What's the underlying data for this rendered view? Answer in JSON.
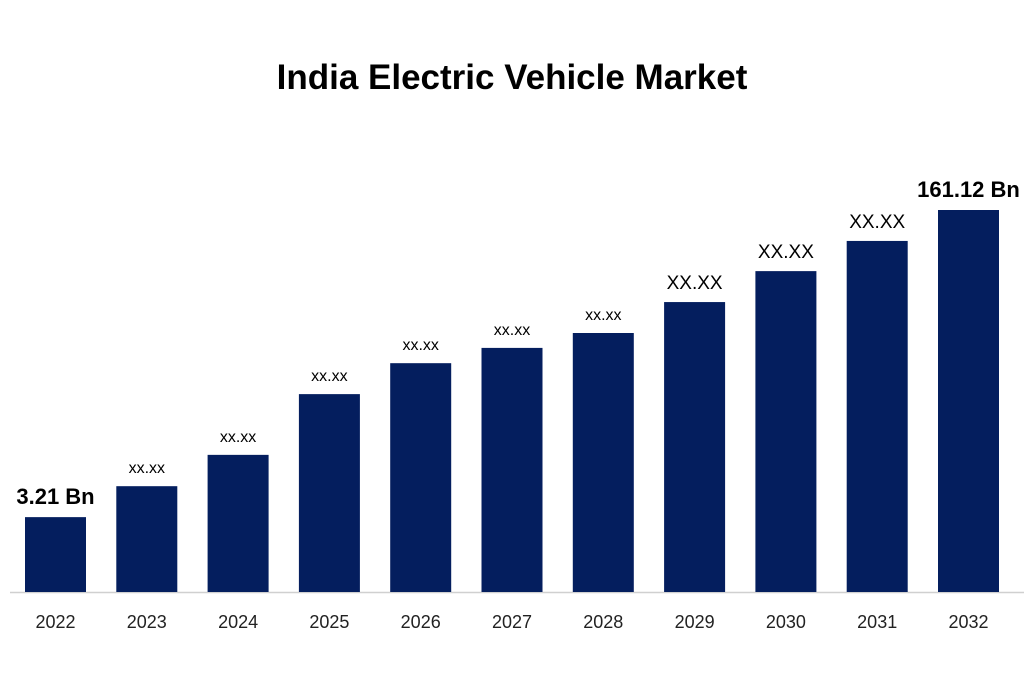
{
  "chart_data": {
    "type": "bar",
    "title": "India Electric Vehicle Market",
    "xlabel": "",
    "ylabel": "",
    "categories": [
      "2022",
      "2023",
      "2024",
      "2025",
      "2026",
      "2027",
      "2028",
      "2029",
      "2030",
      "2031",
      "2032"
    ],
    "data_labels": [
      "3.21 Bn",
      "xx.xx",
      "xx.xx",
      "xx.xx",
      "xx.xx",
      "xx.xx",
      "xx.xx",
      "XX.XX",
      "XX.XX",
      "XX.XX",
      "161.12 Bn"
    ],
    "values": [
      3.21,
      null,
      null,
      null,
      null,
      null,
      null,
      null,
      null,
      null,
      161.12
    ],
    "relative_bar_height_pct": [
      19.6,
      27.7,
      35.9,
      51.8,
      59.9,
      63.9,
      67.8,
      75.9,
      84.0,
      91.9,
      100
    ],
    "grid": false,
    "y_axis_visible": false,
    "bar_color": "#041e5e",
    "axis_line_color": "#d0d0d0"
  }
}
